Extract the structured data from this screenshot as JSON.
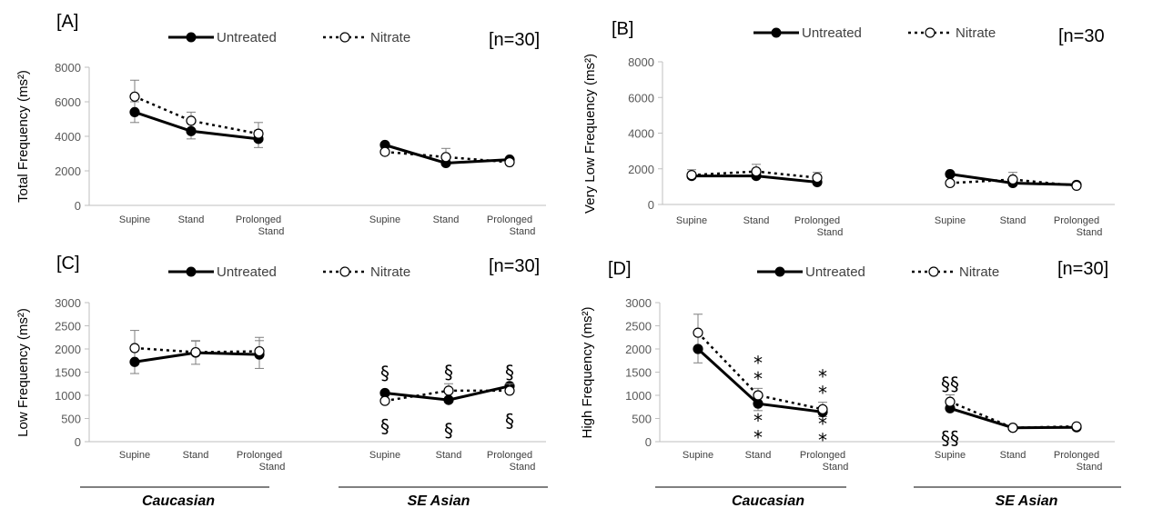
{
  "chart_data": [
    {
      "type": "line",
      "panel": "[A]",
      "ylabel": "Total Frequency (ms²)",
      "n_label": "[n=30]",
      "ylim": [
        0,
        8000
      ],
      "yticks": [
        "0",
        "2000",
        "4000",
        "6000",
        "8000"
      ],
      "categories": [
        "Supine",
        "Stand",
        "Prolonged Stand"
      ],
      "groups": [
        "Caucasian",
        "SE Asian"
      ],
      "legend": [
        "Untreated",
        "Nitrate"
      ],
      "series": [
        {
          "name": "Untreated",
          "values": [
            [
              5400,
              4300,
              3850
            ],
            [
              3500,
              2450,
              2650
            ]
          ],
          "errors": [
            [
              600,
              450,
              500
            ],
            [
              0,
              0,
              0
            ]
          ]
        },
        {
          "name": "Nitrate",
          "values": [
            [
              6300,
              4900,
              4150
            ],
            [
              3100,
              2800,
              2500
            ]
          ],
          "errors": [
            [
              950,
              500,
              650
            ],
            [
              0,
              500,
              0
            ]
          ]
        }
      ],
      "annotations": []
    },
    {
      "type": "line",
      "panel": "[B]",
      "ylabel": "Very Low Frequency (ms²)",
      "n_label": "[n=30",
      "ylim": [
        0,
        8000
      ],
      "yticks": [
        "0",
        "2000",
        "4000",
        "6000",
        "8000"
      ],
      "categories": [
        "Supine",
        "Stand",
        "Prolonged Stand"
      ],
      "groups": [
        "Caucasian",
        "SE Asian"
      ],
      "legend": [
        "Untreated",
        "Nitrate"
      ],
      "series": [
        {
          "name": "Untreated",
          "values": [
            [
              1600,
              1600,
              1250
            ],
            [
              1700,
              1200,
              1100
            ]
          ],
          "errors": [
            [
              0,
              0,
              0
            ],
            [
              0,
              0,
              0
            ]
          ]
        },
        {
          "name": "Nitrate",
          "values": [
            [
              1650,
              1850,
              1500
            ],
            [
              1200,
              1400,
              1050
            ]
          ],
          "errors": [
            [
              300,
              400,
              300
            ],
            [
              0,
              400,
              0
            ]
          ]
        }
      ],
      "annotations": []
    },
    {
      "type": "line",
      "panel": "[C]",
      "ylabel": "Low Frequency (ms²)",
      "n_label": "[n=30]",
      "ylim": [
        0,
        3000
      ],
      "yticks": [
        "0",
        "500",
        "1000",
        "1500",
        "2000",
        "2500",
        "3000"
      ],
      "categories": [
        "Supine",
        "Stand",
        "Prolonged Stand"
      ],
      "groups": [
        "Caucasian",
        "SE Asian"
      ],
      "legend": [
        "Untreated",
        "Nitrate"
      ],
      "series": [
        {
          "name": "Untreated",
          "values": [
            [
              1720,
              1920,
              1880
            ],
            [
              1050,
              900,
              1200
            ]
          ],
          "errors": [
            [
              250,
              250,
              300
            ],
            [
              0,
              0,
              0
            ]
          ]
        },
        {
          "name": "Nitrate",
          "values": [
            [
              2020,
              1930,
              1950
            ],
            [
              880,
              1100,
              1100
            ]
          ],
          "errors": [
            [
              380,
              250,
              300
            ],
            [
              0,
              150,
              150
            ]
          ]
        }
      ],
      "annotations": [
        {
          "text": "§",
          "group": 1,
          "cat": 0,
          "y": 1480
        },
        {
          "text": "§",
          "group": 1,
          "cat": 1,
          "y": 1500
        },
        {
          "text": "§",
          "group": 1,
          "cat": 2,
          "y": 1500
        },
        {
          "text": "§",
          "group": 1,
          "cat": 0,
          "y": 330
        },
        {
          "text": "§",
          "group": 1,
          "cat": 1,
          "y": 250
        },
        {
          "text": "§",
          "group": 1,
          "cat": 2,
          "y": 450
        }
      ]
    },
    {
      "type": "line",
      "panel": "[D]",
      "ylabel": "High Frequency (ms²)",
      "n_label": "[n=30]",
      "ylim": [
        0,
        3000
      ],
      "yticks": [
        "0",
        "500",
        "1000",
        "1500",
        "2000",
        "2500",
        "3000"
      ],
      "categories": [
        "Supine",
        "Stand",
        "Prolonged Stand"
      ],
      "groups": [
        "Caucasian",
        "SE Asian"
      ],
      "legend": [
        "Untreated",
        "Nitrate"
      ],
      "series": [
        {
          "name": "Untreated",
          "values": [
            [
              2000,
              820,
              640
            ],
            [
              720,
              300,
              310
            ]
          ],
          "errors": [
            [
              300,
              150,
              100
            ],
            [
              0,
              0,
              0
            ]
          ]
        },
        {
          "name": "Nitrate",
          "values": [
            [
              2350,
              1000,
              700
            ],
            [
              860,
              300,
              330
            ]
          ],
          "errors": [
            [
              400,
              150,
              150
            ],
            [
              150,
              0,
              0
            ]
          ]
        }
      ],
      "annotations": [
        {
          "text": "*",
          "group": 0,
          "cat": 1,
          "y": 1700
        },
        {
          "text": "*",
          "group": 0,
          "cat": 1,
          "y": 1350
        },
        {
          "text": "*",
          "group": 0,
          "cat": 2,
          "y": 1400
        },
        {
          "text": "*",
          "group": 0,
          "cat": 2,
          "y": 1050
        },
        {
          "text": "*",
          "group": 0,
          "cat": 1,
          "y": 450
        },
        {
          "text": "*",
          "group": 0,
          "cat": 1,
          "y": 90
        },
        {
          "text": "*",
          "group": 0,
          "cat": 2,
          "y": 380
        },
        {
          "text": "*",
          "group": 0,
          "cat": 2,
          "y": 30
        },
        {
          "text": "§§",
          "group": 1,
          "cat": 0,
          "y": 1250
        },
        {
          "text": "§§",
          "group": 1,
          "cat": 0,
          "y": 80
        }
      ]
    }
  ]
}
